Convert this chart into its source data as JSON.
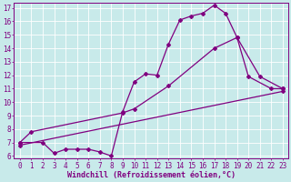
{
  "xlabel": "Windchill (Refroidissement éolien,°C)",
  "bg_color": "#c8eaea",
  "line_color": "#800080",
  "grid_color": "#ffffff",
  "xlim": [
    -0.5,
    23.5
  ],
  "ylim": [
    5.8,
    17.4
  ],
  "xticks": [
    0,
    1,
    2,
    3,
    4,
    5,
    6,
    7,
    8,
    9,
    10,
    11,
    12,
    13,
    14,
    15,
    16,
    17,
    18,
    19,
    20,
    21,
    22,
    23
  ],
  "yticks": [
    6,
    7,
    8,
    9,
    10,
    11,
    12,
    13,
    14,
    15,
    16,
    17
  ],
  "line1_x": [
    0,
    2,
    3,
    4,
    5,
    6,
    7,
    8,
    9,
    10,
    11,
    12,
    13,
    14,
    15,
    16,
    17,
    18,
    19,
    20,
    22,
    23
  ],
  "line1_y": [
    7.0,
    7.0,
    6.2,
    6.5,
    6.5,
    6.5,
    6.3,
    6.0,
    9.3,
    11.5,
    12.1,
    12.0,
    14.3,
    16.1,
    16.4,
    16.6,
    17.2,
    16.6,
    14.8,
    11.9,
    11.0,
    11.0
  ],
  "line2_x": [
    0,
    1,
    9,
    10,
    13,
    17,
    19,
    21,
    23
  ],
  "line2_y": [
    7.0,
    7.8,
    9.2,
    9.5,
    11.2,
    14.0,
    14.8,
    11.9,
    11.0
  ],
  "line3_x": [
    0,
    23
  ],
  "line3_y": [
    6.8,
    10.8
  ],
  "marker": "D",
  "markersize": 2,
  "linewidth": 0.9,
  "xlabel_fontsize": 6,
  "tick_fontsize": 5.5,
  "font_family": "monospace"
}
